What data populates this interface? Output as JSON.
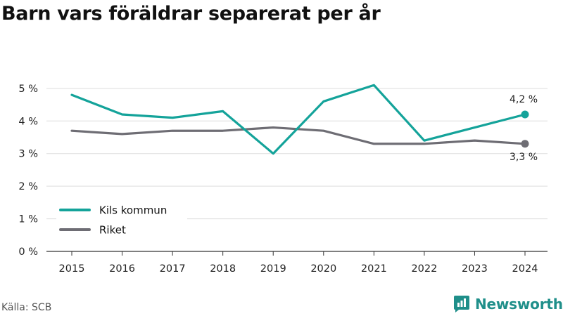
{
  "title": "Barn vars föräldrar separerat per år",
  "source": "Källa: SCB",
  "brand": {
    "name": "Newsworthy",
    "icon": "newsworthy-logo-icon"
  },
  "colors": {
    "kils_kommun": "#14a39a",
    "riket": "#6e6d74",
    "grid": "#dddddd",
    "axis": "#333333"
  },
  "chart_data": {
    "type": "line",
    "x": [
      2015,
      2016,
      2017,
      2018,
      2019,
      2020,
      2021,
      2022,
      2023,
      2024
    ],
    "y_ticks": [
      "0 %",
      "1 %",
      "2 %",
      "3 %",
      "4 %",
      "5 %"
    ],
    "ylim": [
      0,
      5.6
    ],
    "grid": true,
    "legend": "bottom-left",
    "series": [
      {
        "name": "Kils kommun",
        "color": "#14a39a",
        "values": [
          4.8,
          4.2,
          4.1,
          4.3,
          3.0,
          4.6,
          5.1,
          3.4,
          3.8,
          4.2
        ],
        "end_label": "4,2 %"
      },
      {
        "name": "Riket",
        "color": "#6e6d74",
        "values": [
          3.7,
          3.6,
          3.7,
          3.7,
          3.8,
          3.7,
          3.3,
          3.3,
          3.4,
          3.3
        ],
        "end_label": "3,3 %"
      }
    ]
  }
}
